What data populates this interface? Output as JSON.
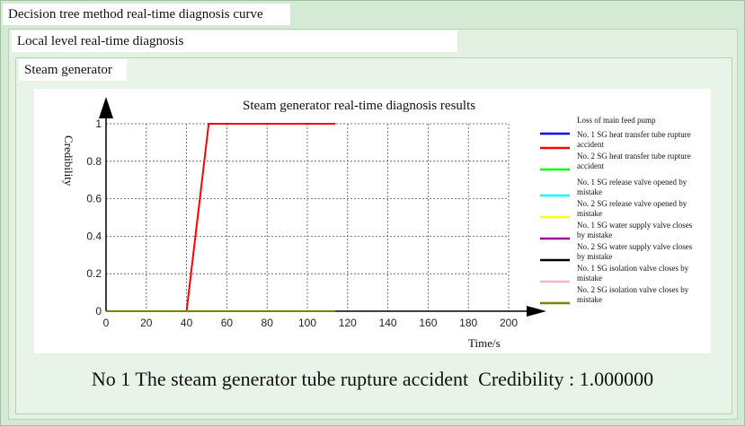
{
  "window": {
    "title": "Decision tree method real-time diagnosis curve",
    "subpanel_title": "Local level real-time diagnosis",
    "group_title": "Steam generator"
  },
  "result_text": "No 1 The steam generator tube rupture accident  Credibility : 1.000000",
  "chart_data": {
    "type": "line",
    "title": "Steam generator real-time diagnosis results",
    "xlabel": "Time/s",
    "ylabel": "Credibility",
    "xlim": [
      0,
      200
    ],
    "ylim": [
      0,
      1
    ],
    "x_ticks": [
      "0",
      "20",
      "40",
      "60",
      "80",
      "100",
      "120",
      "140",
      "160",
      "180",
      "200"
    ],
    "y_ticks": [
      "0",
      "0.2",
      "0.4",
      "0.6",
      "0.8",
      "1"
    ],
    "grid": true,
    "legend_position": "right",
    "series": [
      {
        "name": "Loss of main feed pump",
        "color": "#0000ff",
        "points": []
      },
      {
        "name": "No. 1 SG heat transfer tube rupture accident",
        "color": "#ff0000",
        "points": [
          [
            0,
            0
          ],
          [
            40,
            0
          ],
          [
            51,
            1
          ],
          [
            114,
            1
          ]
        ]
      },
      {
        "name": "No. 2 SG heat transfer tube rupture accident",
        "color": "#00ff00",
        "points": []
      },
      {
        "name": "No. 1 SG release valve opened by mistake",
        "color": "#00ffff",
        "points": []
      },
      {
        "name": "No. 2 SG release valve opened by mistake",
        "color": "#ffff00",
        "points": []
      },
      {
        "name": "No. 1 SG water supply valve closes by mistake",
        "color": "#a000a0",
        "points": []
      },
      {
        "name": "No. 2 SG water supply valve closes by mistake",
        "color": "#000000",
        "points": []
      },
      {
        "name": "No. 1 SG isolation valve closes by mistake",
        "color": "#ffb6c1",
        "points": []
      },
      {
        "name": "No. 2 SG isolation valve closes by mistake",
        "color": "#808000",
        "points": [
          [
            0,
            0
          ],
          [
            114,
            0
          ]
        ]
      }
    ]
  }
}
